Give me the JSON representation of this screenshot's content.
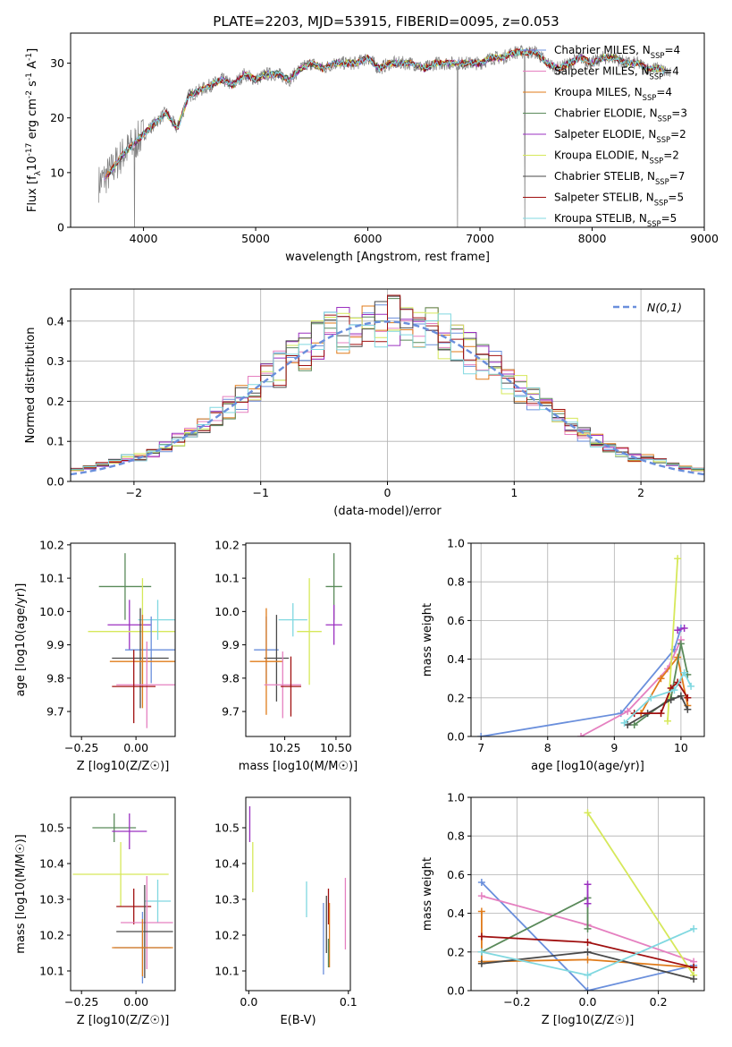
{
  "title": "PLATE=2203, MJD=53915, FIBERID=0095, z=0.053",
  "chart_data": [
    {
      "id": "spectrum",
      "type": "line",
      "xlabel": "wavelength [Angstrom, rest frame]",
      "ylabel": "Flux [f_λ10^-17 erg cm^-2 s^-1 A^-1]",
      "xlim": [
        3350,
        9000
      ],
      "ylim": [
        0,
        35.5
      ],
      "xticks": [
        4000,
        5000,
        6000,
        7000,
        8000,
        9000
      ],
      "yticks": [
        0,
        10,
        20,
        30
      ],
      "legend_position": "top-right",
      "legend": [
        {
          "label": "Chabrier MILES, N_SSP=4",
          "color": "#6a8fdc"
        },
        {
          "label": "Salpeter MILES, N_SSP=4",
          "color": "#e580c0"
        },
        {
          "label": "Kroupa MILES, N_SSP=4",
          "color": "#e07b1a"
        },
        {
          "label": "Chabrier ELODIE, N_SSP=3",
          "color": "#5a8a5a"
        },
        {
          "label": "Salpeter ELODIE, N_SSP=2",
          "color": "#9b30c0"
        },
        {
          "label": "Kroupa ELODIE, N_SSP=2",
          "color": "#d6e85a"
        },
        {
          "label": "Chabrier STELIB, N_SSP=7",
          "color": "#4a4a4a"
        },
        {
          "label": "Salpeter STELIB, N_SSP=5",
          "color": "#a01010"
        },
        {
          "label": "Kroupa STELIB, N_SSP=5",
          "color": "#80d8e0"
        }
      ],
      "data_color": "#808080",
      "data": {
        "x": [
          3600,
          3700,
          3800,
          3900,
          4000,
          4100,
          4200,
          4300,
          4400,
          4500,
          4600,
          4700,
          4800,
          4900,
          5000,
          5100,
          5200,
          5300,
          5400,
          5500,
          5600,
          5700,
          5800,
          5900,
          6000,
          6100,
          6200,
          6300,
          6400,
          6500,
          6600,
          6700,
          6800,
          6900,
          7000,
          7100,
          7200,
          7300,
          7400,
          7500,
          7600,
          7700,
          7800,
          7900,
          8000,
          8100,
          8200,
          8300,
          8400,
          8500,
          8600,
          8700
        ],
        "y": [
          8,
          10,
          13,
          15,
          17,
          19,
          21,
          18,
          24,
          25,
          26,
          27,
          26,
          28,
          27,
          28,
          28,
          27,
          29,
          30,
          29,
          30,
          30,
          30,
          31,
          29,
          30,
          30,
          30,
          29,
          30,
          30,
          30,
          30,
          30,
          31,
          31,
          32,
          32,
          32,
          30,
          29,
          30,
          31,
          30,
          31,
          31,
          30,
          30,
          29,
          29,
          28
        ]
      }
    },
    {
      "id": "residuals",
      "type": "histogram",
      "xlabel": "(data-model)/error",
      "ylabel": "Normed distribution",
      "xlim": [
        -2.5,
        2.5
      ],
      "ylim": [
        0,
        0.48
      ],
      "xticks": [
        -2,
        -1,
        0,
        1,
        2
      ],
      "yticks": [
        0.0,
        0.1,
        0.2,
        0.3,
        0.4
      ],
      "grid": true,
      "legend_position": "top-right",
      "legend": [
        {
          "label": "N(0,1)",
          "color": "#6a8fdc",
          "style": "dashed"
        }
      ],
      "bin_width": 0.1
    },
    {
      "id": "age_vs_Z",
      "type": "errorbar",
      "xlabel": "Z [log10(Z/Z☉)]",
      "ylabel": "age [log10(age/yr)]",
      "xlim": [
        -0.3,
        0.18
      ],
      "ylim": [
        9.625,
        10.205
      ],
      "xticks": [
        -0.25,
        0.0
      ],
      "yticks": [
        9.7,
        9.8,
        9.9,
        10.0,
        10.1,
        10.2
      ],
      "points": [
        {
          "color": "#5a8a5a",
          "x": -0.05,
          "xerr": 0.12,
          "y": 10.075,
          "yerr": 0.1
        },
        {
          "color": "#9b30c0",
          "x": -0.03,
          "xerr": 0.1,
          "y": 9.96,
          "yerr": 0.075
        },
        {
          "color": "#d6e85a",
          "x": 0.03,
          "xerr": 0.25,
          "y": 9.94,
          "yerr": 0.16
        },
        {
          "color": "#80d8e0",
          "x": 0.1,
          "xerr": 0.09,
          "y": 9.975,
          "yerr": 0.06
        },
        {
          "color": "#6a8fdc",
          "x": 0.07,
          "xerr": 0.12,
          "y": 9.885,
          "yerr": 0.1
        },
        {
          "color": "#4a4a4a",
          "x": 0.02,
          "xerr": 0.13,
          "y": 9.86,
          "yerr": 0.15
        },
        {
          "color": "#e07b1a",
          "x": 0.03,
          "xerr": 0.15,
          "y": 9.85,
          "yerr": 0.14
        },
        {
          "color": "#e580c0",
          "x": 0.05,
          "xerr": 0.14,
          "y": 9.78,
          "yerr": 0.13
        },
        {
          "color": "#a01010",
          "x": -0.01,
          "xerr": 0.1,
          "y": 9.775,
          "yerr": 0.11
        }
      ]
    },
    {
      "id": "age_vs_mass",
      "type": "errorbar",
      "xlabel": "mass [log10(M/M☉)]",
      "ylabel": "",
      "xlim": [
        10.06,
        10.57
      ],
      "ylim": [
        9.625,
        10.205
      ],
      "xticks": [
        10.25,
        10.5
      ],
      "yticks": [
        9.7,
        9.8,
        9.9,
        10.0,
        10.1,
        10.2
      ],
      "points": [
        {
          "color": "#5a8a5a",
          "x": 10.49,
          "xerr": 0.04,
          "y": 10.075,
          "yerr": 0.1
        },
        {
          "color": "#9b30c0",
          "x": 10.49,
          "xerr": 0.04,
          "y": 9.96,
          "yerr": 0.06
        },
        {
          "color": "#d6e85a",
          "x": 10.37,
          "xerr": 0.06,
          "y": 9.94,
          "yerr": 0.16
        },
        {
          "color": "#80d8e0",
          "x": 10.29,
          "xerr": 0.07,
          "y": 9.975,
          "yerr": 0.05
        },
        {
          "color": "#6a8fdc",
          "x": 10.16,
          "xerr": 0.06,
          "y": 9.885,
          "yerr": 0.1
        },
        {
          "color": "#4a4a4a",
          "x": 10.21,
          "xerr": 0.06,
          "y": 9.86,
          "yerr": 0.13
        },
        {
          "color": "#e07b1a",
          "x": 10.16,
          "xerr": 0.08,
          "y": 9.85,
          "yerr": 0.16
        },
        {
          "color": "#e580c0",
          "x": 10.24,
          "xerr": 0.09,
          "y": 9.78,
          "yerr": 0.1
        },
        {
          "color": "#a01010",
          "x": 10.28,
          "xerr": 0.05,
          "y": 9.775,
          "yerr": 0.09
        }
      ]
    },
    {
      "id": "weight_vs_age",
      "type": "line",
      "xlabel": "age [log10(age/yr)]",
      "ylabel": "mass weight",
      "xlim": [
        6.85,
        10.35
      ],
      "ylim": [
        0,
        1.0
      ],
      "xticks": [
        7,
        8,
        9,
        10
      ],
      "yticks": [
        0.0,
        0.2,
        0.4,
        0.6,
        0.8,
        1.0
      ],
      "grid": true,
      "series": [
        {
          "color": "#6a8fdc",
          "x": [
            7.0,
            9.1,
            9.9,
            10.0
          ],
          "y": [
            0.0,
            0.12,
            0.45,
            0.56
          ]
        },
        {
          "color": "#e580c0",
          "x": [
            8.5,
            9.2,
            9.8,
            10.0
          ],
          "y": [
            0.0,
            0.13,
            0.35,
            0.5
          ]
        },
        {
          "color": "#e07b1a",
          "x": [
            9.4,
            9.7,
            9.95,
            10.1
          ],
          "y": [
            0.12,
            0.3,
            0.41,
            0.16
          ]
        },
        {
          "color": "#5a8a5a",
          "x": [
            9.3,
            9.85,
            10.0,
            10.1
          ],
          "y": [
            0.06,
            0.2,
            0.48,
            0.32
          ]
        },
        {
          "color": "#9b30c0",
          "x": [
            9.95,
            10.05
          ],
          "y": [
            0.55,
            0.56
          ]
        },
        {
          "color": "#d6e85a",
          "x": [
            9.8,
            9.95
          ],
          "y": [
            0.08,
            0.92
          ]
        },
        {
          "color": "#4a4a4a",
          "x": [
            9.2,
            9.5,
            9.85,
            10.0,
            10.1
          ],
          "y": [
            0.06,
            0.12,
            0.19,
            0.21,
            0.14
          ]
        },
        {
          "color": "#a01010",
          "x": [
            9.3,
            9.7,
            9.85,
            9.95,
            10.1
          ],
          "y": [
            0.12,
            0.12,
            0.25,
            0.28,
            0.2
          ]
        },
        {
          "color": "#80d8e0",
          "x": [
            9.15,
            9.55,
            9.9,
            10.05,
            10.15
          ],
          "y": [
            0.07,
            0.2,
            0.24,
            0.33,
            0.26
          ]
        }
      ]
    },
    {
      "id": "mass_vs_Z",
      "type": "errorbar",
      "xlabel": "Z [log10(Z/Z☉)]",
      "ylabel": "mass [log10(M/M☉)]",
      "xlim": [
        -0.3,
        0.18
      ],
      "ylim": [
        10.045,
        10.585
      ],
      "xticks": [
        -0.25,
        0.0
      ],
      "yticks": [
        10.1,
        10.2,
        10.3,
        10.4,
        10.5
      ],
      "points": [
        {
          "color": "#5a8a5a",
          "x": -0.1,
          "xerr": 0.1,
          "y": 10.5,
          "yerr": 0.04
        },
        {
          "color": "#9b30c0",
          "x": -0.03,
          "xerr": 0.08,
          "y": 10.49,
          "yerr": 0.05
        },
        {
          "color": "#d6e85a",
          "x": -0.07,
          "xerr": 0.22,
          "y": 10.37,
          "yerr": 0.09
        },
        {
          "color": "#80d8e0",
          "x": 0.1,
          "xerr": 0.06,
          "y": 10.295,
          "yerr": 0.06
        },
        {
          "color": "#a01010",
          "x": -0.01,
          "xerr": 0.08,
          "y": 10.28,
          "yerr": 0.05
        },
        {
          "color": "#e580c0",
          "x": 0.05,
          "xerr": 0.12,
          "y": 10.235,
          "yerr": 0.13
        },
        {
          "color": "#4a4a4a",
          "x": 0.04,
          "xerr": 0.13,
          "y": 10.21,
          "yerr": 0.13
        },
        {
          "color": "#6a8fdc",
          "x": 0.03,
          "xerr": 0.13,
          "y": 10.165,
          "yerr": 0.1
        },
        {
          "color": "#e07b1a",
          "x": 0.03,
          "xerr": 0.14,
          "y": 10.165,
          "yerr": 0.08
        }
      ]
    },
    {
      "id": "mass_vs_EBV",
      "type": "errorbar",
      "xlabel": "E(B-V)",
      "ylabel": "",
      "xlim": [
        -0.003,
        0.102
      ],
      "ylim": [
        10.045,
        10.585
      ],
      "xticks": [
        0.0,
        0.1
      ],
      "yticks": [
        10.1,
        10.2,
        10.3,
        10.4,
        10.5
      ],
      "points": [
        {
          "color": "#9b30c0",
          "x": 0.001,
          "xerr": 0.0,
          "y": 10.51,
          "yerr": 0.05
        },
        {
          "color": "#d6e85a",
          "x": 0.004,
          "xerr": 0.0,
          "y": 10.39,
          "yerr": 0.07
        },
        {
          "color": "#80d8e0",
          "x": 0.058,
          "xerr": 0.0,
          "y": 10.3,
          "yerr": 0.05
        },
        {
          "color": "#4a4a4a",
          "x": 0.078,
          "xerr": 0.0,
          "y": 10.23,
          "yerr": 0.08
        },
        {
          "color": "#a01010",
          "x": 0.08,
          "xerr": 0.0,
          "y": 10.28,
          "yerr": 0.05
        },
        {
          "color": "#6a8fdc",
          "x": 0.075,
          "xerr": 0.0,
          "y": 10.19,
          "yerr": 0.1
        },
        {
          "color": "#e07b1a",
          "x": 0.081,
          "xerr": 0.0,
          "y": 10.2,
          "yerr": 0.09
        },
        {
          "color": "#e580c0",
          "x": 0.097,
          "xerr": 0.0,
          "y": 10.26,
          "yerr": 0.1
        },
        {
          "color": "#5a8a5a",
          "x": 0.08,
          "xerr": 0.0,
          "y": 10.15,
          "yerr": 0.04
        }
      ]
    },
    {
      "id": "weight_vs_Z",
      "type": "line",
      "xlabel": "Z [log10(Z/Z☉)]",
      "ylabel": "mass weight",
      "xlim": [
        -0.33,
        0.33
      ],
      "ylim": [
        0,
        1.0
      ],
      "xticks": [
        -0.2,
        0.0,
        0.2
      ],
      "yticks": [
        0.0,
        0.2,
        0.4,
        0.6,
        0.8,
        1.0
      ],
      "grid": true,
      "series": [
        {
          "color": "#6a8fdc",
          "x": [
            -0.3,
            0.0,
            0.3
          ],
          "y": [
            0.56,
            0.0,
            0.13
          ]
        },
        {
          "color": "#e580c0",
          "x": [
            -0.3,
            0.0,
            0.3
          ],
          "y": [
            0.49,
            0.34,
            0.15
          ]
        },
        {
          "color": "#e07b1a",
          "x": [
            -0.3,
            -0.3,
            0.0,
            0.3
          ],
          "y": [
            0.41,
            0.15,
            0.16,
            0.12
          ]
        },
        {
          "color": "#5a8a5a",
          "x": [
            -0.3,
            0.0,
            0.0
          ],
          "y": [
            0.2,
            0.48,
            0.32
          ]
        },
        {
          "color": "#9b30c0",
          "x": [
            0.0,
            0.0
          ],
          "y": [
            0.55,
            0.45
          ]
        },
        {
          "color": "#d6e85a",
          "x": [
            0.0,
            0.3
          ],
          "y": [
            0.92,
            0.08
          ]
        },
        {
          "color": "#4a4a4a",
          "x": [
            -0.3,
            0.0,
            0.3
          ],
          "y": [
            0.14,
            0.2,
            0.06
          ]
        },
        {
          "color": "#a01010",
          "x": [
            -0.3,
            0.0,
            0.3
          ],
          "y": [
            0.28,
            0.25,
            0.12
          ]
        },
        {
          "color": "#80d8e0",
          "x": [
            -0.3,
            0.0,
            0.3
          ],
          "y": [
            0.2,
            0.08,
            0.32
          ]
        }
      ]
    }
  ]
}
